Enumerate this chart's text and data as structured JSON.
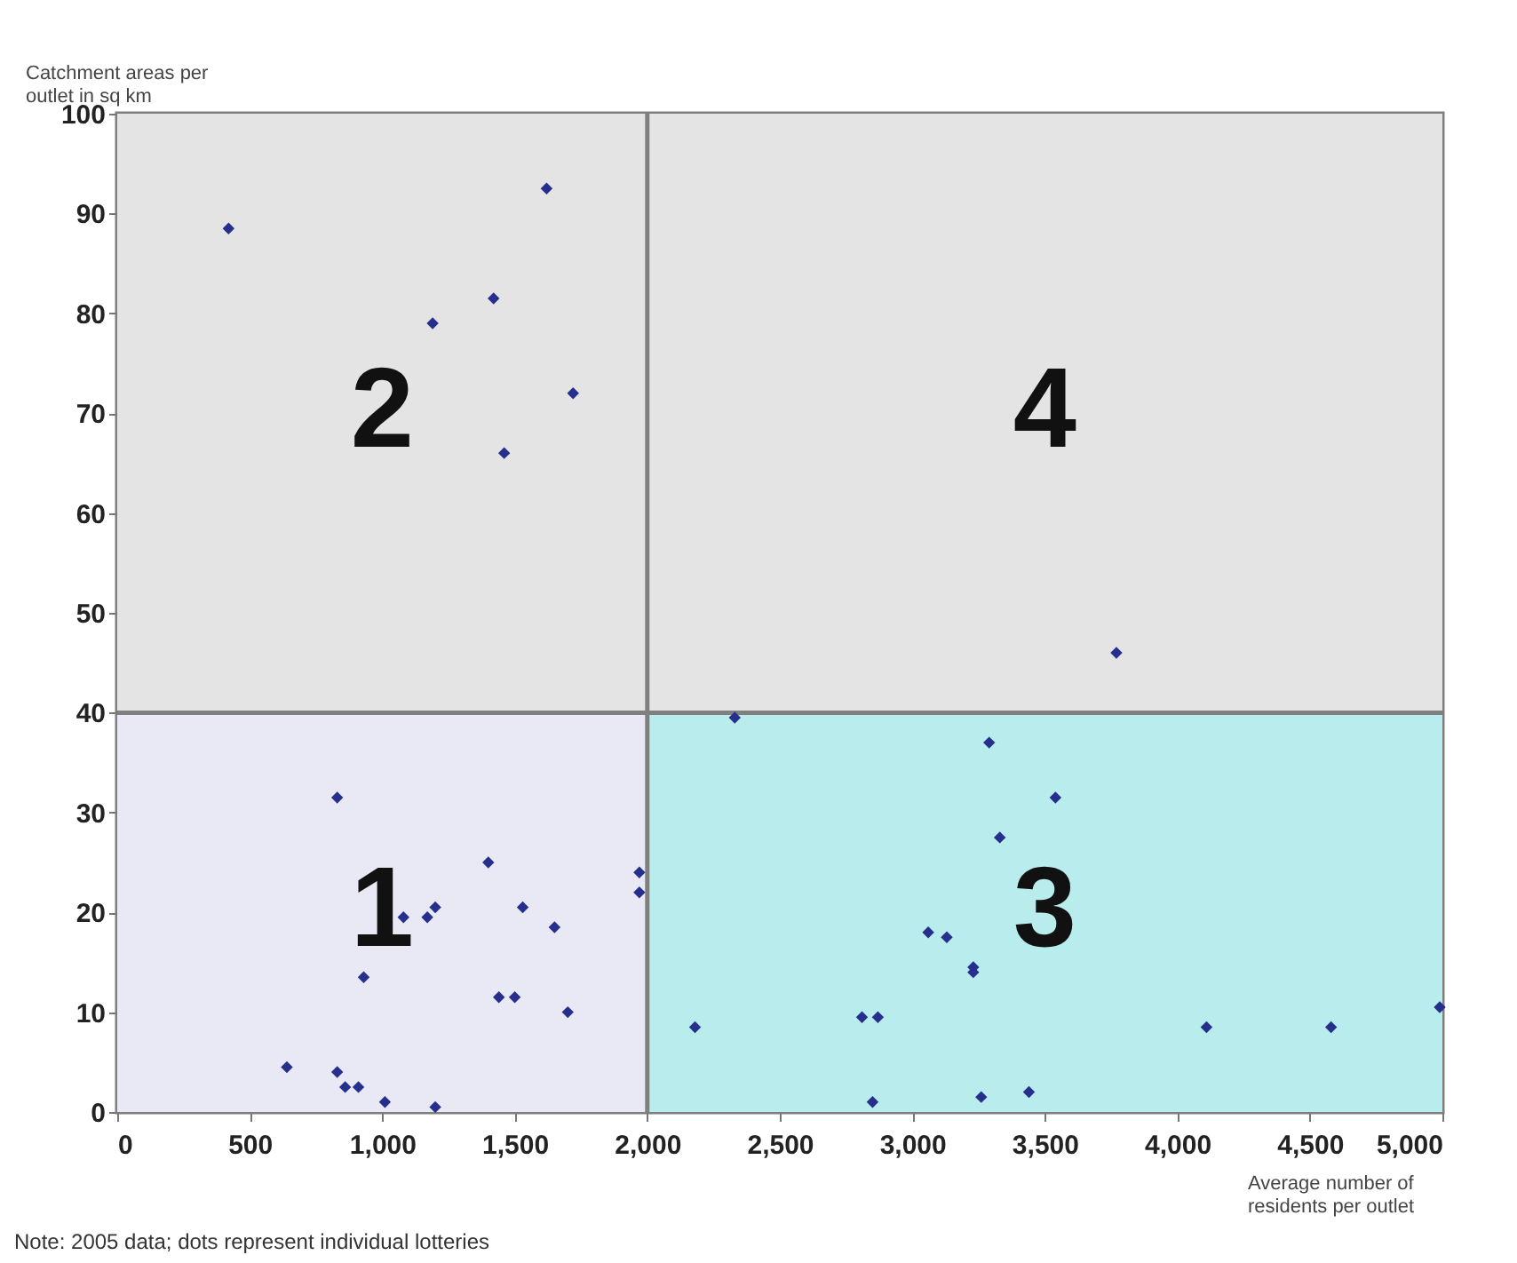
{
  "chart_data": {
    "type": "scatter",
    "xlabel": "Average number of residents per outlet",
    "ylabel": "Catchment areas per outlet in sq km",
    "xlim": [
      0,
      5000
    ],
    "xticks": [
      0,
      500,
      {
        "value": 1000,
        "label": "1,000"
      },
      {
        "value": 1500,
        "label": "1,500"
      },
      {
        "value": 2000,
        "label": "2,000"
      },
      {
        "value": 2500,
        "label": "2,500"
      },
      {
        "value": 3000,
        "label": "3,000"
      },
      {
        "value": 3500,
        "label": "3,500"
      },
      {
        "value": 4000,
        "label": "4,000"
      },
      {
        "value": 4500,
        "label": "4,500"
      },
      {
        "value": 5000,
        "label": "5,000"
      }
    ],
    "ylim": [
      0,
      100
    ],
    "yticks": [
      0,
      10,
      20,
      30,
      40,
      50,
      60,
      70,
      80,
      90,
      100
    ],
    "grid": false,
    "marker": "diamond",
    "series": [
      {
        "color": "#262f8c",
        "x": [
          420,
          1620,
          1420,
          1190,
          1720,
          1460,
          3770,
          830,
          1400,
          1970,
          1970,
          1530,
          1200,
          1170,
          1080,
          1650,
          930,
          1440,
          1500,
          1700,
          640,
          830,
          860,
          910,
          1010,
          1200,
          2330,
          3290,
          3540,
          3330,
          3060,
          3130,
          3230,
          3230,
          2180,
          2810,
          2870,
          4110,
          4580,
          4990,
          2850,
          3260,
          3440
        ],
        "values": [
          88.5,
          92.5,
          81.5,
          79,
          72,
          66,
          46,
          31.5,
          25,
          24,
          22,
          20.5,
          20.5,
          19.5,
          19.5,
          18.5,
          13.5,
          11.5,
          11.5,
          10,
          4.5,
          4,
          2.5,
          2.5,
          1,
          0.5,
          39.5,
          37,
          31.5,
          27.5,
          18,
          17.5,
          14.5,
          14,
          8.5,
          9.5,
          9.5,
          8.5,
          8.5,
          10.5,
          1,
          1.5,
          2
        ]
      }
    ],
    "bands": [
      {
        "axis": "x",
        "from": 0,
        "to": 2000,
        "color": "#e9e9f6"
      },
      {
        "axis": "x",
        "from": 2000,
        "to": 5000,
        "color": "#b9ecec"
      },
      {
        "axis": "y",
        "from": 40,
        "to": 100,
        "color": "#e4e4e4"
      }
    ],
    "ref_lines": [
      {
        "axis": "x",
        "value": 2000,
        "color": "#7f7f7f"
      },
      {
        "axis": "y",
        "value": 40,
        "color": "#7f7f7f"
      }
    ],
    "annotations": [
      "2",
      "4",
      "1",
      "3",
      "Note: 2005 data; dots represent individual lotteries"
    ]
  }
}
